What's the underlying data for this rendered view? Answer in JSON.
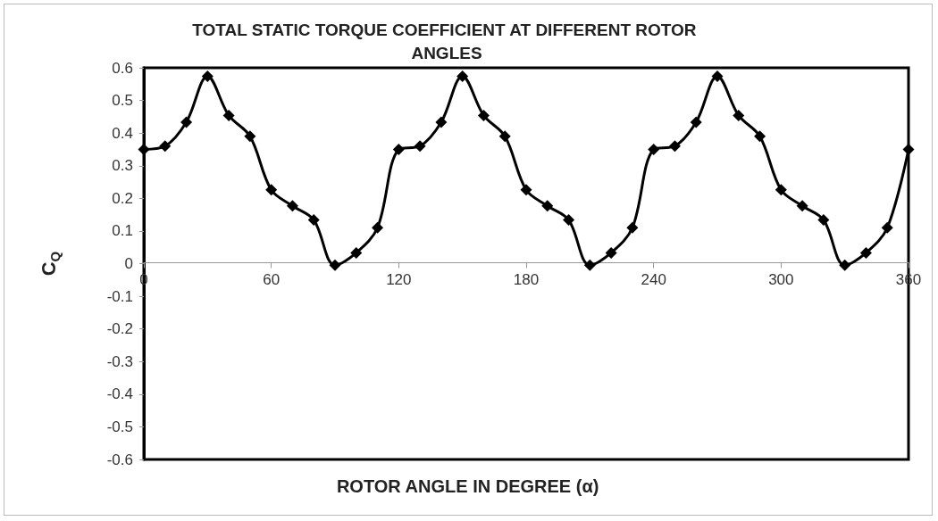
{
  "chart_data": {
    "type": "line",
    "title": "TOTAL STATIC TORQUE COEFFICIENT AT DIFFERENT ROTOR ANGLES",
    "xlabel": "ROTOR ANGLE IN DEGREE (α)",
    "ylabel": "C$_{Q}$",
    "x": [
      0,
      10,
      20,
      30,
      40,
      50,
      60,
      70,
      80,
      90,
      100,
      110,
      120,
      130,
      140,
      150,
      160,
      170,
      180,
      190,
      200,
      210,
      220,
      230,
      240,
      250,
      260,
      270,
      280,
      290,
      300,
      310,
      320,
      330,
      340,
      350,
      360
    ],
    "series": [
      {
        "color": "#000000",
        "values": [
          0.35,
          0.36,
          0.433,
          0.574,
          0.454,
          0.39,
          0.226,
          0.177,
          0.134,
          -0.005,
          0.033,
          0.11,
          0.35,
          0.36,
          0.433,
          0.574,
          0.454,
          0.39,
          0.226,
          0.177,
          0.134,
          -0.005,
          0.033,
          0.11,
          0.35,
          0.36,
          0.433,
          0.574,
          0.454,
          0.39,
          0.226,
          0.177,
          0.134,
          -0.005,
          0.033,
          0.11,
          0.35
        ]
      }
    ],
    "xlim": [
      0,
      360
    ],
    "xticks": [
      0,
      60,
      120,
      180,
      240,
      300,
      360
    ],
    "ylim": [
      -0.6,
      0.6
    ],
    "yticks": [
      -0.6,
      -0.5,
      -0.4,
      -0.3,
      -0.2,
      -0.1,
      0,
      0.1,
      0.2,
      0.3,
      0.4,
      0.5,
      0.6
    ],
    "grid": false,
    "marker": "diamond",
    "line_style": "solid"
  }
}
